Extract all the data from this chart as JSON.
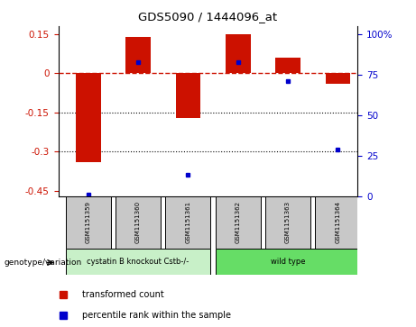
{
  "title": "GDS5090 / 1444096_at",
  "samples": [
    "GSM1151359",
    "GSM1151360",
    "GSM1151361",
    "GSM1151362",
    "GSM1151363",
    "GSM1151364"
  ],
  "transformed_counts": [
    -0.34,
    0.14,
    -0.17,
    0.15,
    0.06,
    -0.04
  ],
  "percentile_ranks": [
    1,
    83,
    13,
    83,
    71,
    29
  ],
  "bar_color": "#CC1100",
  "dot_color": "#0000CC",
  "ylim_left": [
    -0.47,
    0.18
  ],
  "ylim_right": [
    0,
    105
  ],
  "yticks_left": [
    0.15,
    0,
    -0.15,
    -0.3,
    -0.45
  ],
  "yticks_right": [
    100,
    75,
    50,
    25,
    0
  ],
  "hline_y": 0,
  "dotted_lines": [
    -0.15,
    -0.3
  ],
  "bar_width": 0.5,
  "legend_label_bar": "transformed count",
  "legend_label_dot": "percentile rank within the sample",
  "genotype_label": "genotype/variation",
  "group_info": [
    {
      "indices": [
        0,
        1,
        2
      ],
      "label": "cystatin B knockout Cstb-/-",
      "color": "#c8f0c8"
    },
    {
      "indices": [
        3,
        4,
        5
      ],
      "label": "wild type",
      "color": "#66dd66"
    }
  ],
  "sample_box_color": "#c8c8c8",
  "xlim": [
    -0.6,
    5.4
  ]
}
